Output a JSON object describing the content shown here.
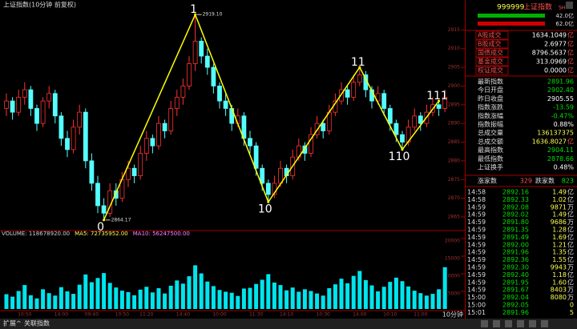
{
  "header": {
    "title": "上证指数(10分钟 前复权)"
  },
  "chart": {
    "type": "candlestick",
    "up_color": "#ff3232",
    "down_color": "#54ffff",
    "ohlc": [
      [
        2894,
        2898,
        2892,
        2896
      ],
      [
        2896,
        2897,
        2891,
        2893
      ],
      [
        2893,
        2899,
        2892,
        2897
      ],
      [
        2897,
        2901,
        2895,
        2899
      ],
      [
        2899,
        2900,
        2892,
        2894
      ],
      [
        2894,
        2895,
        2888,
        2890
      ],
      [
        2890,
        2897,
        2889,
        2896
      ],
      [
        2896,
        2900,
        2894,
        2898
      ],
      [
        2898,
        2899,
        2890,
        2892
      ],
      [
        2892,
        2893,
        2884,
        2886
      ],
      [
        2886,
        2888,
        2881,
        2883
      ],
      [
        2883,
        2891,
        2882,
        2889
      ],
      [
        2889,
        2895,
        2887,
        2893
      ],
      [
        2893,
        2894,
        2878,
        2880
      ],
      [
        2880,
        2882,
        2872,
        2874
      ],
      [
        2874,
        2876,
        2866,
        2868
      ],
      [
        2868,
        2870,
        2864.17,
        2866
      ],
      [
        2866,
        2874,
        2865,
        2872
      ],
      [
        2872,
        2874,
        2868,
        2870
      ],
      [
        2870,
        2877,
        2869,
        2875
      ],
      [
        2875,
        2880,
        2873,
        2878
      ],
      [
        2878,
        2879,
        2874,
        2876
      ],
      [
        2876,
        2884,
        2875,
        2882
      ],
      [
        2882,
        2888,
        2880,
        2886
      ],
      [
        2886,
        2887,
        2882,
        2884
      ],
      [
        2884,
        2892,
        2883,
        2890
      ],
      [
        2890,
        2891,
        2886,
        2888
      ],
      [
        2888,
        2896,
        2887,
        2894
      ],
      [
        2894,
        2899,
        2892,
        2897
      ],
      [
        2897,
        2902,
        2895,
        2900
      ],
      [
        2900,
        2908,
        2899,
        2906
      ],
      [
        2906,
        2919.1,
        2904,
        2912
      ],
      [
        2912,
        2913,
        2906,
        2908
      ],
      [
        2908,
        2910,
        2903,
        2905
      ],
      [
        2905,
        2906,
        2898,
        2900
      ],
      [
        2900,
        2901,
        2894,
        2896
      ],
      [
        2896,
        2898,
        2892,
        2894
      ],
      [
        2894,
        2895,
        2888,
        2890
      ],
      [
        2890,
        2894,
        2889,
        2892
      ],
      [
        2892,
        2893,
        2884,
        2886
      ],
      [
        2886,
        2888,
        2882,
        2884
      ],
      [
        2884,
        2885,
        2876,
        2878
      ],
      [
        2878,
        2879,
        2872,
        2874
      ],
      [
        2874,
        2875,
        2869,
        2871
      ],
      [
        2871,
        2876,
        2870,
        2874
      ],
      [
        2874,
        2880,
        2873,
        2878
      ],
      [
        2878,
        2879,
        2874,
        2876
      ],
      [
        2876,
        2883,
        2875,
        2881
      ],
      [
        2881,
        2886,
        2880,
        2884
      ],
      [
        2884,
        2885,
        2880,
        2882
      ],
      [
        2882,
        2889,
        2881,
        2887
      ],
      [
        2887,
        2892,
        2886,
        2890
      ],
      [
        2890,
        2891,
        2886,
        2888
      ],
      [
        2888,
        2895,
        2887,
        2893
      ],
      [
        2893,
        2898,
        2892,
        2896
      ],
      [
        2896,
        2901,
        2895,
        2899
      ],
      [
        2899,
        2900,
        2895,
        2897
      ],
      [
        2897,
        2903,
        2896,
        2901
      ],
      [
        2901,
        2905,
        2900,
        2903
      ],
      [
        2903,
        2904,
        2897,
        2899
      ],
      [
        2899,
        2900,
        2894,
        2896
      ],
      [
        2896,
        2900,
        2895,
        2898
      ],
      [
        2898,
        2899,
        2892,
        2894
      ],
      [
        2894,
        2895,
        2888,
        2890
      ],
      [
        2890,
        2891,
        2885,
        2887
      ],
      [
        2887,
        2888,
        2883,
        2885
      ],
      [
        2885,
        2891,
        2884,
        2889
      ],
      [
        2889,
        2894,
        2888,
        2892
      ],
      [
        2892,
        2893,
        2888,
        2890
      ],
      [
        2890,
        2895,
        2889,
        2893
      ],
      [
        2893,
        2897,
        2892,
        2895
      ],
      [
        2895,
        2896,
        2892,
        2894
      ],
      [
        2894,
        2899,
        2893,
        2897
      ]
    ],
    "ylim": [
      2862,
      2920
    ],
    "yticks": [
      2865,
      2870,
      2875,
      2880,
      2885,
      2890,
      2895,
      2900,
      2905,
      2910,
      2915
    ],
    "waves": [
      {
        "label": "0",
        "at": 16,
        "value": 2864.17,
        "value_label": "2864.17"
      },
      {
        "label": "1",
        "at": 31,
        "value": 2919.1,
        "value_label": "2919.10"
      },
      {
        "label": "10",
        "at": 43,
        "value": 2869
      },
      {
        "label": "11",
        "at": 58,
        "value": 2905
      },
      {
        "label": "110",
        "at": 65,
        "value": 2883
      },
      {
        "label": "111",
        "at": 71,
        "value": 2896
      }
    ],
    "wave_color": "#ffff00",
    "volume": {
      "legend": [
        {
          "text": "VOLUME: 118678920.00",
          "color": "#d0d0d0"
        },
        {
          "text": "MA5: 72735952.00",
          "color": "#ffff54"
        },
        {
          "text": "MA10: 56247500.00",
          "color": "#ff80ff"
        }
      ],
      "color": "#00e5ee",
      "values": [
        4200,
        3500,
        5100,
        6800,
        3900,
        3000,
        5600,
        4500,
        3800,
        6200,
        5000,
        4300,
        6900,
        9800,
        7600,
        8800,
        10200,
        7400,
        6100,
        5200,
        4800,
        3900,
        5500,
        6300,
        4700,
        5900,
        4400,
        6600,
        8100,
        7200,
        9300,
        12400,
        10100,
        7800,
        6500,
        5400,
        4900,
        4600,
        3700,
        5800,
        6000,
        7100,
        8300,
        9900,
        7500,
        6800,
        5300,
        6100,
        4900,
        5600,
        5100,
        4400,
        3800,
        5900,
        7000,
        8600,
        7300,
        9400,
        10800,
        8200,
        6700,
        5000,
        6300,
        7700,
        8900,
        7900,
        6400,
        5200,
        4500,
        3800,
        4300,
        5600,
        11868
      ],
      "ylim": [
        0,
        20000
      ],
      "yticks": [
        5000,
        10000,
        15000,
        20000
      ]
    },
    "time_labels": [
      {
        "at": 3,
        "label": "10:50"
      },
      {
        "at": 9,
        "label": "14:00"
      },
      {
        "at": 14,
        "label": "09:40"
      },
      {
        "at": 19,
        "label": "10:50"
      },
      {
        "at": 23,
        "label": "11:20"
      },
      {
        "at": 29,
        "label": "14:40"
      },
      {
        "at": 35,
        "label": "10:00"
      },
      {
        "at": 41,
        "label": "11:30"
      },
      {
        "at": 46,
        "label": "14:10"
      },
      {
        "at": 52,
        "label": "10:30"
      },
      {
        "at": 58,
        "label": "14:00"
      },
      {
        "at": 63,
        "label": "10:10"
      },
      {
        "at": 68,
        "label": "11:00"
      }
    ]
  },
  "quote": {
    "code": "999999",
    "name": "上证指数",
    "market": "SH",
    "bars": [
      {
        "text": "42.0亿",
        "color": "#00b000"
      },
      {
        "text": "62.0亿",
        "color": "#d00000"
      }
    ],
    "stats": [
      {
        "label": "A股成交",
        "value": "1634.1049",
        "unit": "亿",
        "color": "#ffffff"
      },
      {
        "label": "B股成交",
        "value": "2.6977",
        "unit": "亿",
        "color": "#ffffff"
      },
      {
        "label": "国债成交",
        "value": "8796.5637",
        "unit": "亿",
        "color": "#ffffff"
      },
      {
        "label": "基金成交",
        "value": "313.0969",
        "unit": "亿",
        "color": "#ffffff"
      },
      {
        "label": "权证成交",
        "value": "0.0000",
        "unit": "亿",
        "color": "#ffffff"
      },
      {
        "label": "最新指数",
        "value": "2891.96",
        "color": "#00e000"
      },
      {
        "label": "今日开盘",
        "value": "2902.40",
        "color": "#00e000"
      },
      {
        "label": "昨日收盘",
        "value": "2905.55",
        "color": "#ffffff"
      },
      {
        "label": "指数涨跌",
        "value": "-13.59",
        "color": "#00e000"
      },
      {
        "label": "指数涨幅",
        "value": "-0.47%",
        "color": "#00e000"
      },
      {
        "label": "指数振幅",
        "value": "0.88%",
        "color": "#ffffff"
      },
      {
        "label": "总成交量",
        "value": "136137375",
        "color": "#ffff54"
      },
      {
        "label": "总成交额",
        "value": "1636.8027",
        "unit": "亿",
        "color": "#ffff54"
      },
      {
        "label": "最高指数",
        "value": "2904.11",
        "color": "#00e000"
      },
      {
        "label": "最低指数",
        "value": "2878.66",
        "color": "#00e000"
      },
      {
        "label": "上证换手",
        "value": "0.48%",
        "color": "#ffffff"
      }
    ],
    "breadth": {
      "up_label": "涨家数",
      "up": "329",
      "down_label": "跌家数",
      "down": "823"
    },
    "trades": [
      [
        "14:58",
        "2892.16",
        "1.49",
        "亿"
      ],
      [
        "14:58",
        "2892.33",
        "1.02",
        "亿"
      ],
      [
        "14:59",
        "2892.08",
        "9871",
        "万"
      ],
      [
        "14:59",
        "2892.02",
        "1.49",
        "亿"
      ],
      [
        "14:59",
        "2891.80",
        "9686",
        "万"
      ],
      [
        "14:59",
        "2891.35",
        "1.28",
        "亿"
      ],
      [
        "14:59",
        "2891.49",
        "1.69",
        "亿"
      ],
      [
        "14:59",
        "2892.00",
        "1.21",
        "亿"
      ],
      [
        "14:59",
        "2891.96",
        "1.35",
        "亿"
      ],
      [
        "14:59",
        "2892.36",
        "1.55",
        "亿"
      ],
      [
        "14:59",
        "2892.30",
        "9943",
        "万"
      ],
      [
        "14:59",
        "2892.40",
        "1.18",
        "亿"
      ],
      [
        "14:59",
        "2891.95",
        "1.60",
        "亿"
      ],
      [
        "14:59",
        "2891.67",
        "8403",
        "万"
      ],
      [
        "15:00",
        "2892.04",
        "8080",
        "万"
      ],
      [
        "15:00",
        "2892.05",
        "0"
      ],
      [
        "15:01",
        "2891.96",
        "5"
      ]
    ]
  },
  "footer": {
    "tabs": [
      "扩展^",
      "关联指数"
    ],
    "period": "10分钟"
  }
}
